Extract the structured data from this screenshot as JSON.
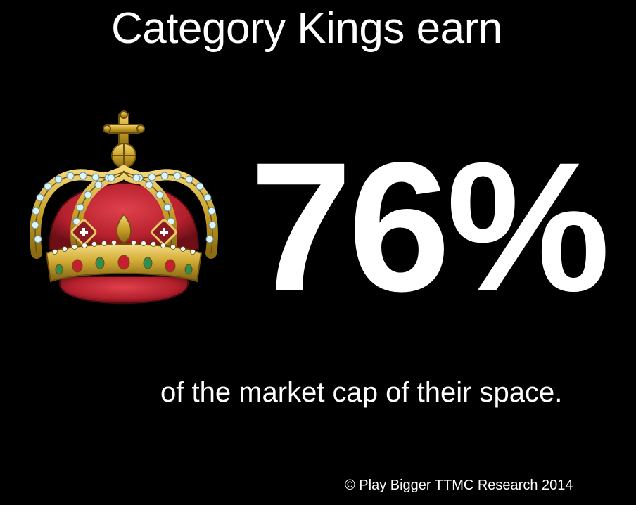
{
  "headline": "Category Kings earn",
  "stat": "76%",
  "subline": "of the market cap of their space.",
  "copyright": "© Play Bigger TTMC Research 2014",
  "illustration": "crown-icon",
  "colors": {
    "background": "#000000",
    "text": "#ffffff",
    "gold": "#c9a227",
    "velvet": "#b3202c",
    "pearl": "#bfe3f2"
  }
}
